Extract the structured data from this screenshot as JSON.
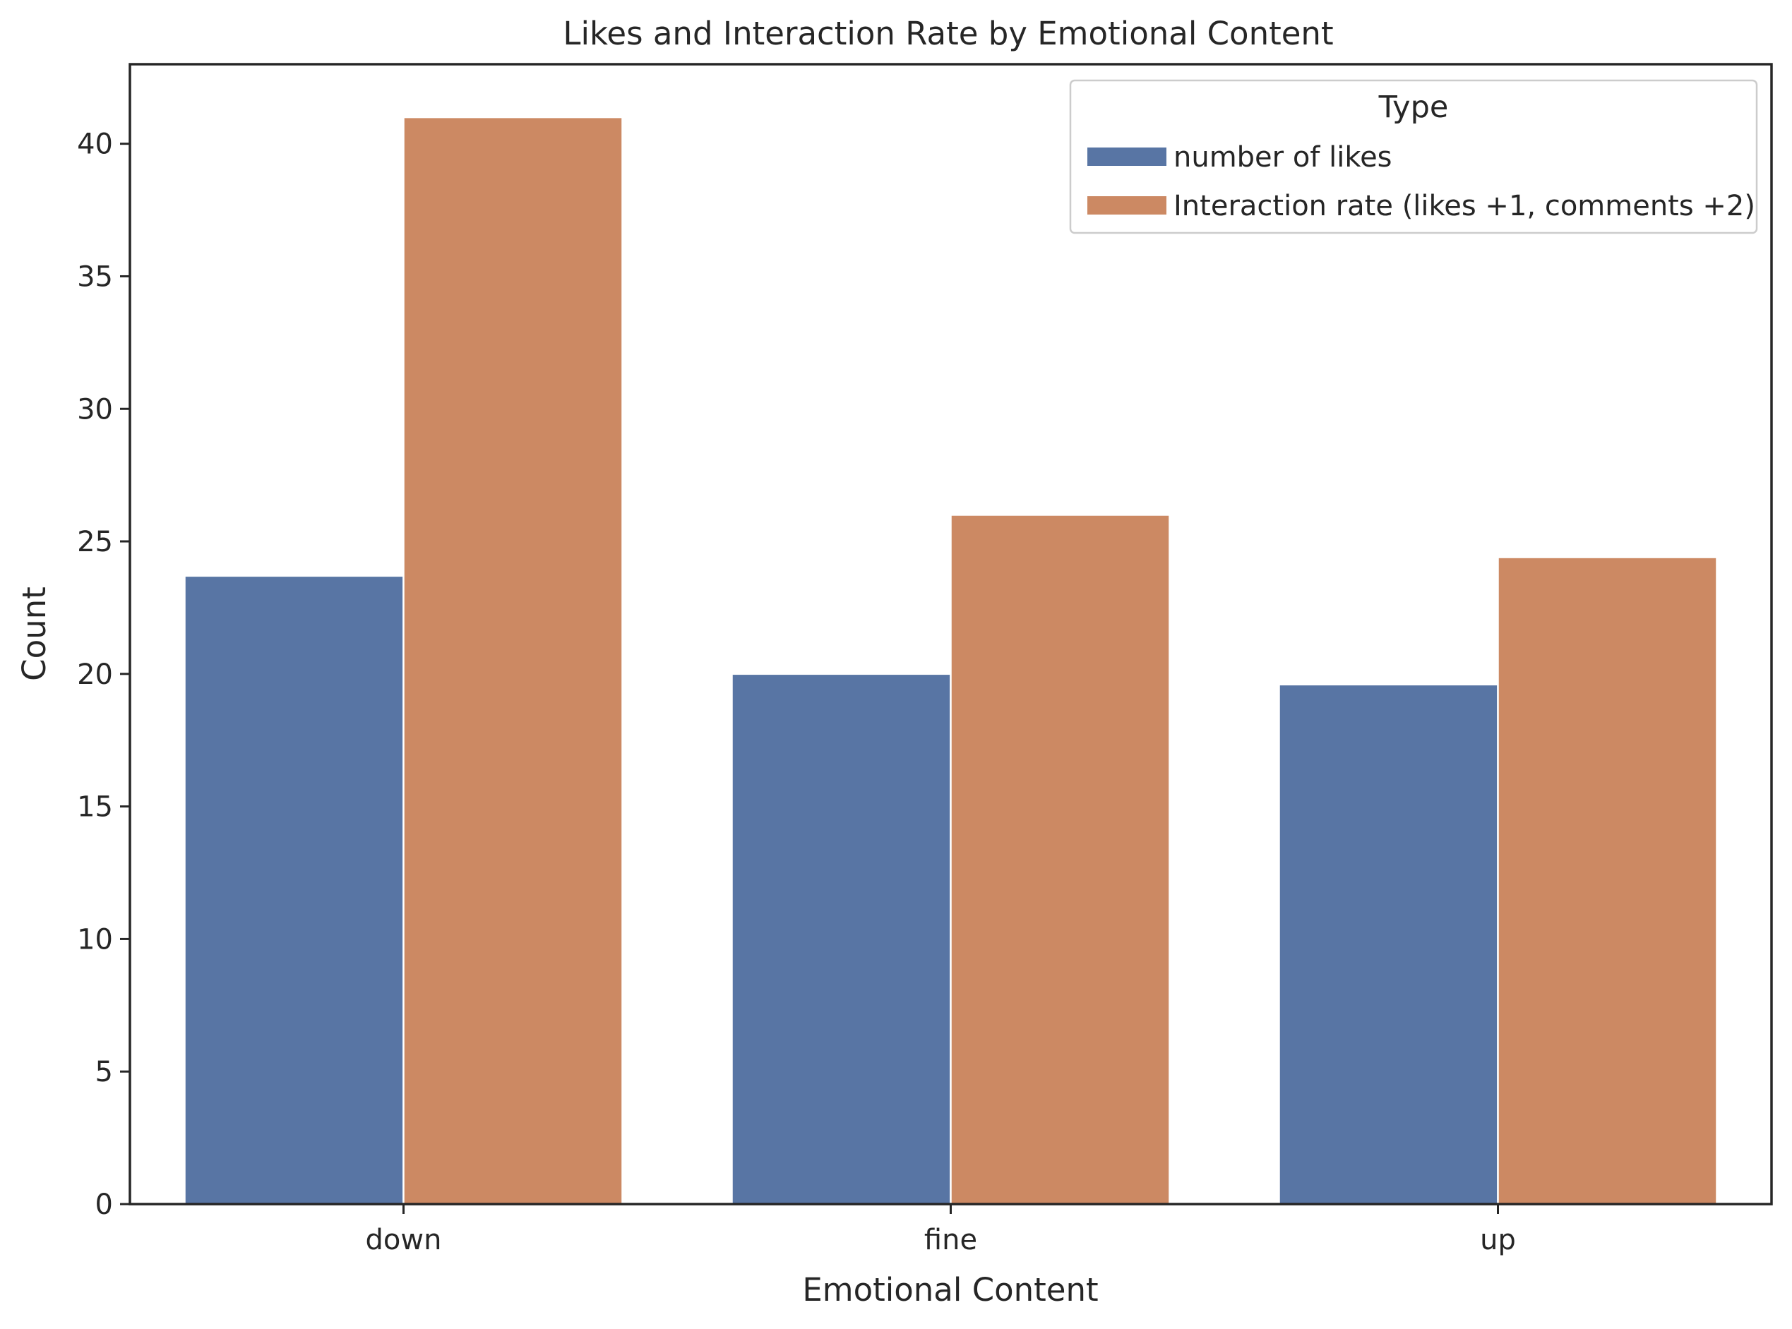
{
  "chart_data": {
    "type": "bar",
    "title": "Likes and Interaction Rate by Emotional Content",
    "xlabel": "Emotional Content",
    "ylabel": "Count",
    "categories": [
      "down",
      "fine",
      "up"
    ],
    "series": [
      {
        "name": "number of likes",
        "values": [
          23.7,
          20.0,
          19.6
        ],
        "color": "#5875a4"
      },
      {
        "name": "Interaction rate (likes +1, comments +2)",
        "values": [
          41.0,
          26.0,
          24.4
        ],
        "color": "#cc8963"
      }
    ],
    "ylim": [
      0,
      43
    ],
    "yticks": [
      0,
      5,
      10,
      15,
      20,
      25,
      30,
      35,
      40
    ],
    "legend": {
      "title": "Type",
      "placement": "top-right"
    },
    "grid": false
  }
}
